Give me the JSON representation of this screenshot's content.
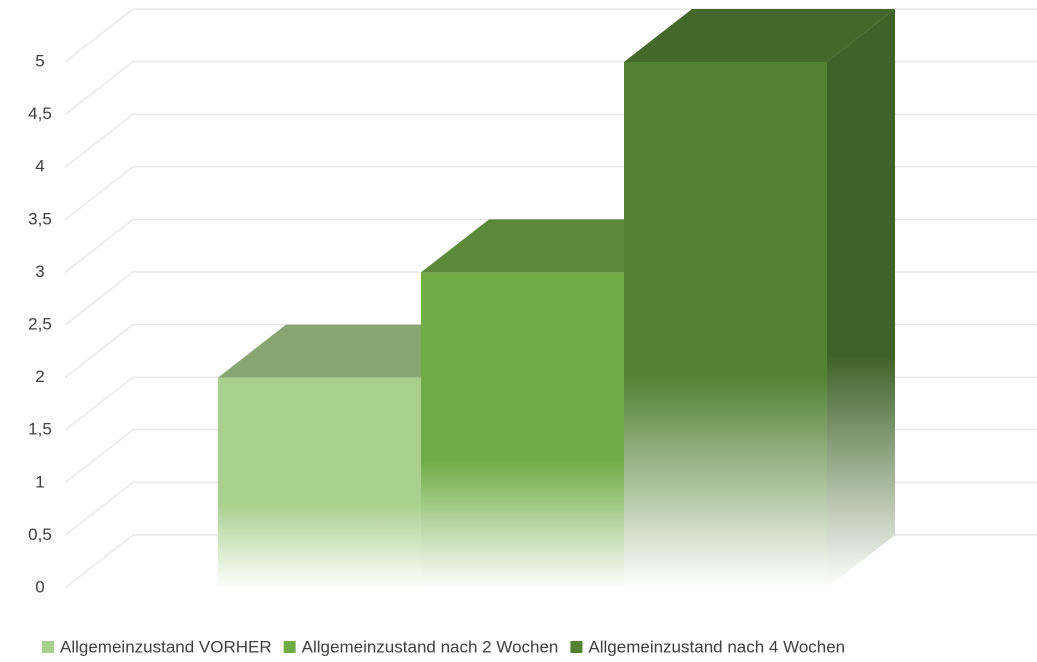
{
  "chart_data": {
    "type": "bar3d",
    "categories": [
      null
    ],
    "series": [
      {
        "name": "Allgemeinzustand VORHER",
        "color": "#a9d08e",
        "values": [
          2
        ]
      },
      {
        "name": "Allgemeinzustand nach 2 Wochen",
        "color": "#70ad47",
        "values": [
          3
        ]
      },
      {
        "name": "Allgemeinzustand nach 4 Wochen",
        "color": "#548235",
        "values": [
          5
        ]
      }
    ],
    "ylim": [
      0,
      5
    ],
    "yticks": [
      0,
      {
        "value": 0.5,
        "label": "0,5"
      },
      1,
      {
        "value": 1.5,
        "label": "1,5"
      },
      2,
      {
        "value": 2.5,
        "label": "2,5"
      },
      3,
      {
        "value": 3.5,
        "label": "3,5"
      },
      4,
      {
        "value": 4.5,
        "label": "4,5"
      },
      5
    ],
    "grid": true,
    "legend": "bottom"
  }
}
